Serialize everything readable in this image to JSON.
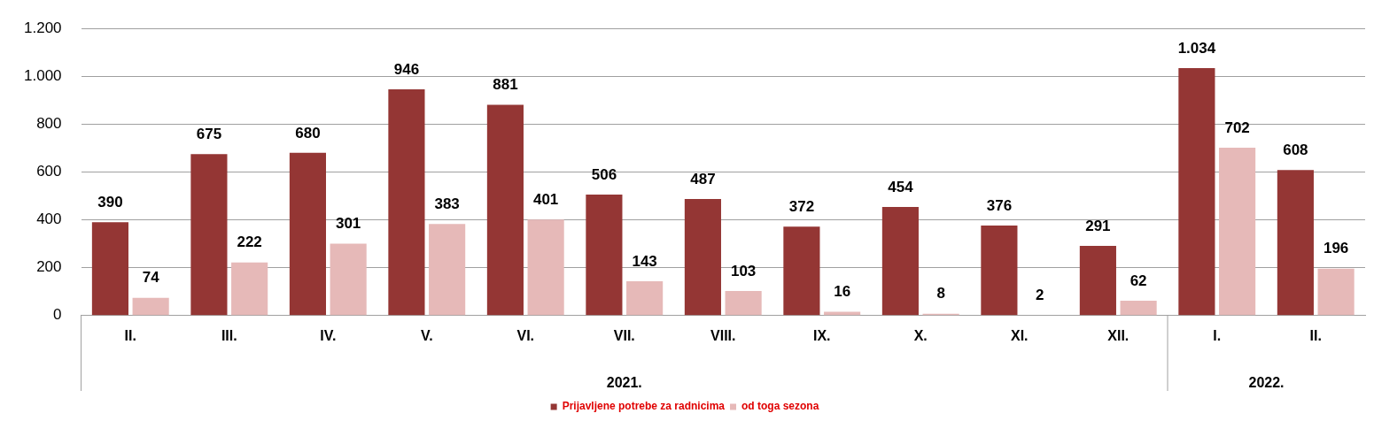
{
  "chart_data": {
    "type": "bar",
    "categories": [
      "II.",
      "III.",
      "IV.",
      "V.",
      "VI.",
      "VII.",
      "VIII.",
      "IX.",
      "X.",
      "XI.",
      "XII.",
      "I.",
      "II."
    ],
    "series": [
      {
        "name": "Prijavljene potrebe za radnicima",
        "color": "#943634",
        "values": [
          390,
          675,
          680,
          946,
          881,
          506,
          487,
          372,
          454,
          376,
          291,
          1034,
          608
        ],
        "value_labels": [
          "390",
          "675",
          "680",
          "946",
          "881",
          "506",
          "487",
          "372",
          "454",
          "376",
          "291",
          "1.034",
          "608"
        ]
      },
      {
        "name": "od toga sezona",
        "color": "#e6b9b8",
        "values": [
          74,
          222,
          301,
          383,
          401,
          143,
          103,
          16,
          8,
          2,
          62,
          702,
          196
        ],
        "value_labels": [
          "74",
          "222",
          "301",
          "383",
          "401",
          "143",
          "103",
          "16",
          "8",
          "2",
          "62",
          "702",
          "196"
        ]
      }
    ],
    "ylim": [
      0,
      1200
    ],
    "yticks": [
      0,
      {
        "value": 200,
        "label": "200"
      },
      400,
      600,
      800,
      {
        "value": 1000,
        "label": "1.000"
      },
      {
        "value": 1200,
        "label": "1.200"
      }
    ],
    "grid": "y",
    "legend": "bottom",
    "annotations": [
      "2021.",
      "2022."
    ]
  }
}
